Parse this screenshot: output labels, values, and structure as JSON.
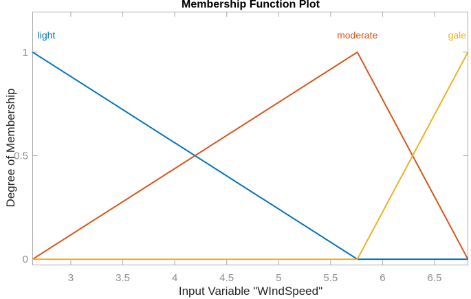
{
  "chart_data": {
    "type": "line",
    "title": "Membership Function Plot",
    "xlabel": "Input Variable \"WIndSpeed\"",
    "ylabel": "Degree of Membership",
    "xlim": [
      2.633,
      6.821
    ],
    "ylim": [
      -0.028,
      1.194
    ],
    "xticks": [
      3,
      3.5,
      4,
      4.5,
      5,
      5.5,
      6,
      6.5
    ],
    "xtick_labels": [
      "3",
      "3.5",
      "4",
      "4.5",
      "5",
      "5.5",
      "6",
      "6.5"
    ],
    "yticks": [
      0,
      0.5,
      1
    ],
    "ytick_labels": [
      "0",
      "0.5",
      "1"
    ],
    "grid": false,
    "legend_position": "none (curves labeled inline at top of axes)",
    "series": [
      {
        "name": "light",
        "color": "#0072BD",
        "points": [
          [
            2.633,
            1
          ],
          [
            5.757,
            0
          ],
          [
            6.821,
            0
          ]
        ],
        "label_x": 2.68,
        "label_align": "start"
      },
      {
        "name": "moderate",
        "color": "#D95319",
        "points": [
          [
            2.633,
            0
          ],
          [
            5.757,
            1
          ],
          [
            6.821,
            0
          ]
        ],
        "label_x": 5.757,
        "label_align": "middle"
      },
      {
        "name": "gale",
        "color": "#EDB120",
        "points": [
          [
            2.633,
            0
          ],
          [
            5.757,
            0
          ],
          [
            6.821,
            1
          ]
        ],
        "label_x": 6.805,
        "label_align": "end"
      }
    ],
    "colors": {
      "axis": "#a8a8a8",
      "tick_label": "#8c8c8c",
      "axis_label": "#262626",
      "title": "#000000",
      "background": "#ffffff"
    }
  }
}
